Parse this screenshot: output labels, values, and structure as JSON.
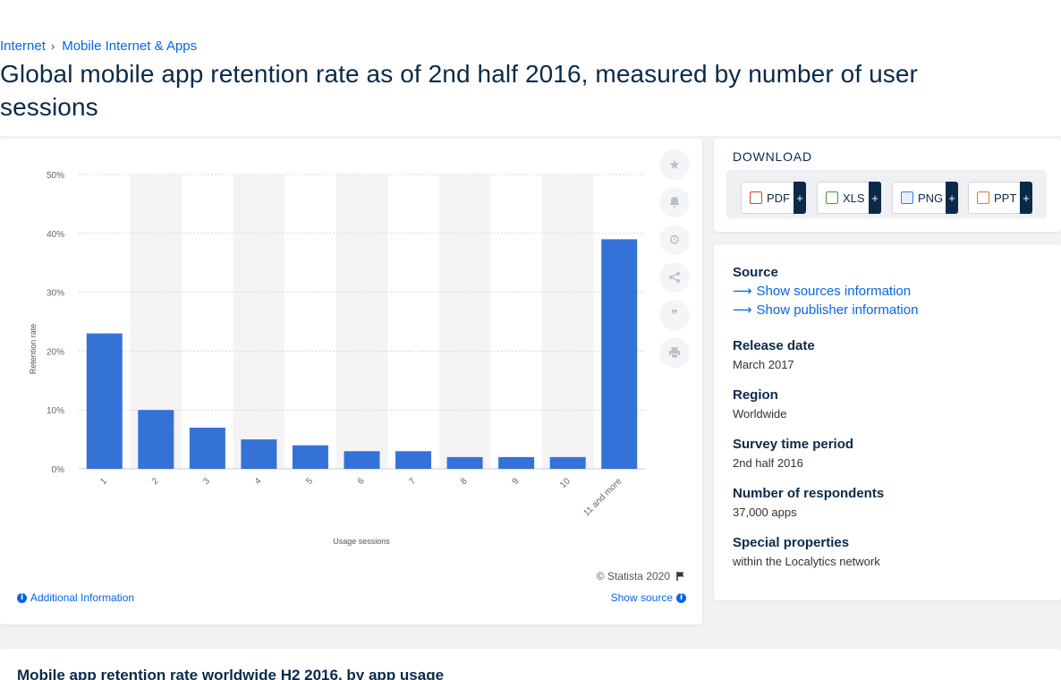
{
  "breadcrumb": {
    "items": [
      "Internet",
      "Mobile Internet & Apps"
    ]
  },
  "page_title": "Global mobile app retention rate as of 2nd half 2016, measured by number of user sessions",
  "chart_data": {
    "type": "bar",
    "categories": [
      "1",
      "2",
      "3",
      "4",
      "5",
      "6",
      "7",
      "8",
      "9",
      "10",
      "11 and more"
    ],
    "values": [
      23,
      10,
      7,
      5,
      4,
      3,
      3,
      2,
      2,
      2,
      39
    ],
    "xlabel": "Usage sessions",
    "ylabel": "Retention rate",
    "ylim": [
      0,
      50
    ],
    "yticks": [
      "0%",
      "10%",
      "20%",
      "30%",
      "40%",
      "50%"
    ],
    "grid": true,
    "bar_color": "#3572d8",
    "band_color": "#f4f4f4"
  },
  "chart_footer": {
    "copyright": "© Statista 2020",
    "additional_info": "Additional Information",
    "show_source": "Show source"
  },
  "tools": [
    "star-icon",
    "bell-icon",
    "gear-icon",
    "share-icon",
    "quote-icon",
    "print-icon"
  ],
  "download": {
    "title": "DOWNLOAD",
    "buttons": [
      {
        "label": "PDF",
        "color": "#d93a2b"
      },
      {
        "label": "XLS",
        "color": "#3a9a3a"
      },
      {
        "label": "PNG",
        "color": "#3b7fd1"
      },
      {
        "label": "PPT",
        "color": "#e07b1f"
      }
    ],
    "plus": "+"
  },
  "info": {
    "source_heading": "Source",
    "show_sources": "Show sources information",
    "show_publisher": "Show publisher information",
    "release_heading": "Release date",
    "release_value": "March 2017",
    "region_heading": "Region",
    "region_value": "Worldwide",
    "survey_heading": "Survey time period",
    "survey_value": "2nd half 2016",
    "respondents_heading": "Number of respondents",
    "respondents_value": "37,000 apps",
    "special_heading": "Special properties",
    "special_value": "within the Localytics network"
  },
  "bottom_title": "Mobile app retention rate worldwide H2 2016, by app usage"
}
